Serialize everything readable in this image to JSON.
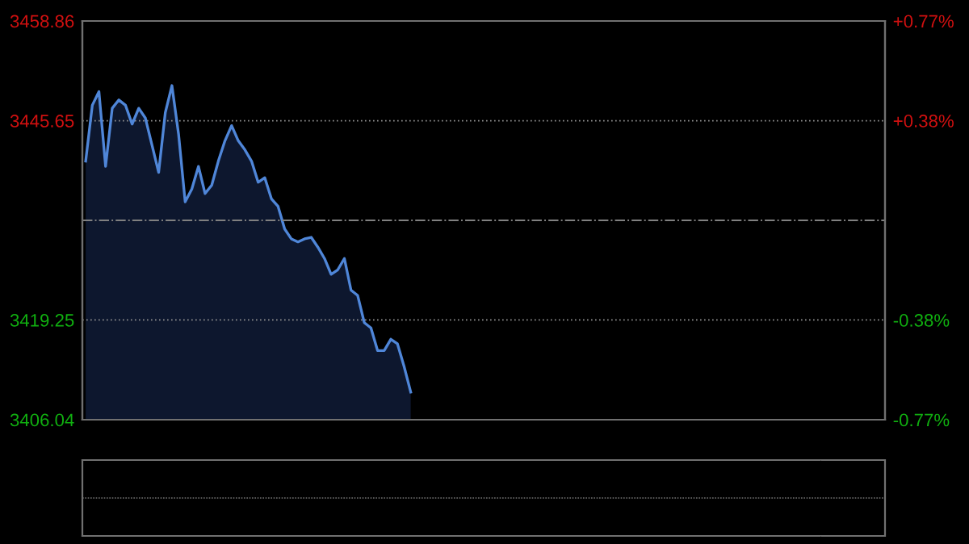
{
  "chart_data": {
    "type": "area",
    "categories": [
      null,
      null,
      null,
      null,
      null,
      null,
      null,
      null,
      null,
      null,
      null,
      null,
      null,
      null,
      null,
      null,
      null,
      null,
      null,
      null,
      null,
      null,
      null,
      null,
      null,
      null,
      null,
      null,
      null,
      null,
      null,
      null,
      null,
      null,
      null,
      null,
      null,
      null,
      null,
      null,
      null,
      null,
      null,
      null,
      null,
      null,
      null,
      null,
      null,
      null,
      null,
      null,
      null,
      null,
      null,
      null,
      null,
      null,
      null,
      null,
      null,
      null,
      null,
      null,
      null,
      null,
      null,
      null,
      null,
      null,
      null,
      null,
      null,
      null,
      null,
      null,
      null,
      null,
      null,
      null,
      null,
      null,
      null,
      null,
      null,
      null,
      null,
      null,
      null,
      null,
      null,
      null,
      null,
      null,
      null,
      null,
      null,
      null,
      null,
      null,
      null,
      null,
      null,
      null,
      null,
      null,
      null,
      null,
      null,
      null,
      null,
      null,
      null,
      null,
      null,
      null,
      null,
      null,
      null,
      null,
      null
    ],
    "series": [
      {
        "color": "#4f86d8",
        "values": [
          3440.3,
          3447.7,
          3449.5,
          3439.6,
          3447.3,
          3448.4,
          3447.7,
          3445.2,
          3447.3,
          3446.0,
          3442.4,
          3438.8,
          3446.7,
          3450.3,
          3443.9,
          3434.9,
          3436.6,
          3439.6,
          3436.0,
          3437.1,
          3440.3,
          3443.0,
          3445.0,
          3443.0,
          3441.8,
          3440.3,
          3437.5,
          3438.1,
          3435.3,
          3434.3,
          3431.3,
          3430.0,
          3429.6,
          3430.0,
          3430.2,
          3428.9,
          3427.4,
          3425.3,
          3425.9,
          3427.4,
          3423.2,
          3422.5,
          3418.9,
          3418.2,
          3415.2,
          3415.2,
          3416.7,
          3416.1,
          3413.1,
          3409.7,
          null,
          null,
          null,
          null,
          null,
          null,
          null,
          null,
          null,
          null,
          null,
          null,
          null,
          null,
          null,
          null,
          null,
          null,
          null,
          null,
          null,
          null,
          null,
          null,
          null,
          null,
          null,
          null,
          null,
          null,
          null,
          null,
          null,
          null,
          null,
          null,
          null,
          null,
          null,
          null,
          null,
          null,
          null,
          null,
          null,
          null,
          null,
          null,
          null,
          null,
          null,
          null,
          null,
          null,
          null,
          null,
          null,
          null,
          null,
          null,
          null,
          null,
          null,
          null,
          null,
          null,
          null,
          null,
          null,
          null,
          null
        ]
      }
    ],
    "ylim": [
      3406.04,
      3458.86
    ],
    "yticks": [
      3406.04,
      3419.25,
      3445.65,
      3458.86
    ],
    "y2lim": [
      -0.77,
      0.77
    ],
    "y2ticks": [
      {
        "value": -0.77,
        "label": "-0.77%"
      },
      {
        "value": -0.385,
        "label": "-0.38%"
      },
      {
        "value": 0.385,
        "label": "+0.38%"
      },
      {
        "value": 0.77,
        "label": "+0.77%"
      }
    ],
    "ref_lines": [
      {
        "axis": "y",
        "value": 3432.45,
        "color": "#808080",
        "line_style": "dashdot"
      }
    ],
    "grid": "y"
  }
}
